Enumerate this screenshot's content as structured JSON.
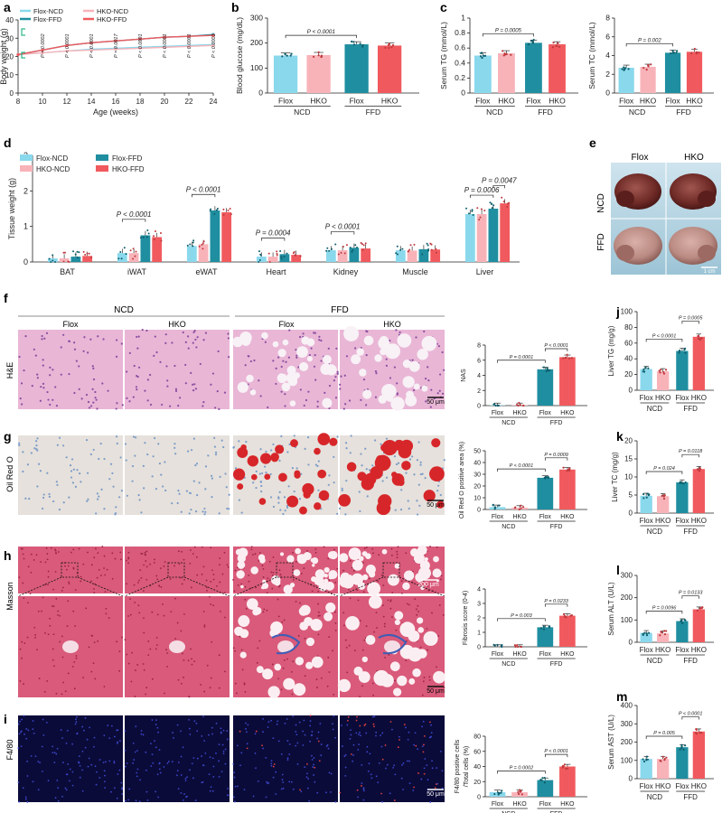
{
  "colors": {
    "flox_ncd": "#8ad8ec",
    "hko_ncd": "#f8b3b9",
    "flox_ffd": "#1f8ea0",
    "hko_ffd": "#f05a5e"
  },
  "panel_letters": [
    "a",
    "b",
    "c",
    "d",
    "e",
    "f",
    "g",
    "h",
    "i",
    "j",
    "k",
    "l",
    "m"
  ],
  "legend_groups": [
    "Flox-NCD",
    "HKO-NCD",
    "Flox-FFD",
    "HKO-FFD"
  ],
  "groups": {
    "flox": "Flox",
    "hko": "HKO",
    "ncd": "NCD",
    "ffd": "FFD"
  },
  "chart_data": [
    {
      "panel": "a",
      "type": "line",
      "xlabel": "Age (weeks)",
      "ylabel": "Body weight (g)",
      "x": [
        8,
        10,
        12,
        14,
        16,
        18,
        20,
        22,
        24
      ],
      "xticks": [
        8,
        10,
        12,
        14,
        16,
        18,
        20,
        22,
        24
      ],
      "ylim": [
        0,
        40
      ],
      "yticks": [
        0,
        10,
        20,
        30,
        40
      ],
      "series": [
        {
          "name": "Flox-NCD",
          "values": [
            21,
            22,
            23,
            24,
            24.5,
            25,
            25.5,
            26,
            26.5
          ]
        },
        {
          "name": "HKO-NCD",
          "values": [
            21,
            22,
            23,
            23.5,
            24,
            24.5,
            25,
            25.5,
            26
          ]
        },
        {
          "name": "Flox-FFD",
          "values": [
            21,
            23.5,
            26,
            27.5,
            28.5,
            29.5,
            30.5,
            31,
            32
          ]
        },
        {
          "name": "HKO-FFD",
          "values": [
            21,
            23.5,
            26,
            27.5,
            28.5,
            29.5,
            30.5,
            31,
            31.5
          ]
        }
      ],
      "pvalues": [
        "P = 0.0002",
        "P < 0.0001",
        "P < 0.0001",
        "P = 0.0017",
        "P < 0.0001",
        "P < 0.0001",
        "P < 0.0001",
        "P < 0.0001"
      ]
    },
    {
      "panel": "b",
      "type": "bar",
      "ylabel": "Blood glucose (mg/dL)",
      "ylim": [
        0,
        300
      ],
      "yticks": [
        0,
        100,
        200,
        300
      ],
      "values": [
        150,
        152,
        195,
        190
      ],
      "comparisons": [
        {
          "from": 0,
          "to": 2,
          "p": "P < 0.0001"
        }
      ]
    },
    {
      "panel": "c1",
      "type": "bar",
      "ylabel": "Serum TG (mmol/L)",
      "ylim": [
        0,
        1.0
      ],
      "yticks": [
        0,
        0.2,
        0.4,
        0.6,
        0.8,
        1.0
      ],
      "values": [
        0.5,
        0.53,
        0.67,
        0.65
      ],
      "comparisons": [
        {
          "from": 0,
          "to": 2,
          "p": "P = 0.0005"
        }
      ]
    },
    {
      "panel": "c2",
      "type": "bar",
      "ylabel": "Serum TC (mmol/L)",
      "ylim": [
        0,
        8
      ],
      "yticks": [
        0,
        2,
        4,
        6,
        8
      ],
      "values": [
        2.7,
        2.8,
        4.3,
        4.4
      ],
      "comparisons": [
        {
          "from": 0,
          "to": 2,
          "p": "P = 0.002"
        }
      ]
    },
    {
      "panel": "d",
      "type": "grouped_bar",
      "ylabel": "Tissue weight (g)",
      "ylim": [
        0,
        3
      ],
      "yticks": [
        0,
        1,
        2,
        3
      ],
      "categories": [
        "BAT",
        "iWAT",
        "eWAT",
        "Heart",
        "Kidney",
        "Muscle",
        "Liver"
      ],
      "series": [
        {
          "name": "Flox-NCD",
          "values": [
            0.1,
            0.25,
            0.45,
            0.15,
            0.33,
            0.33,
            1.35
          ]
        },
        {
          "name": "HKO-NCD",
          "values": [
            0.1,
            0.25,
            0.5,
            0.15,
            0.33,
            0.32,
            1.35
          ]
        },
        {
          "name": "Flox-FFD",
          "values": [
            0.15,
            0.75,
            1.45,
            0.22,
            0.4,
            0.36,
            1.5
          ]
        },
        {
          "name": "HKO-FFD",
          "values": [
            0.17,
            0.7,
            1.4,
            0.2,
            0.38,
            0.35,
            1.65
          ]
        }
      ],
      "comparisons": [
        {
          "category": 1,
          "from": 0,
          "to": 2,
          "p": "P < 0.0001"
        },
        {
          "category": 2,
          "from": 0,
          "to": 2,
          "p": "P < 0.0001"
        },
        {
          "category": 3,
          "from": 0,
          "to": 2,
          "p": "P = 0.0004"
        },
        {
          "category": 4,
          "from": 0,
          "to": 2,
          "p": "P < 0.0001"
        },
        {
          "category": 6,
          "from": 0,
          "to": 2,
          "p": "P = 0.0006"
        },
        {
          "category": 6,
          "from": 2,
          "to": 3,
          "p": "P = 0.0047"
        }
      ]
    },
    {
      "panel": "f",
      "type": "bar",
      "ylabel": "NAS",
      "ylim": [
        0,
        8
      ],
      "yticks": [
        0,
        2,
        4,
        6,
        8
      ],
      "values": [
        0.05,
        0.05,
        4.8,
        6.4
      ],
      "comparisons": [
        {
          "from": 0,
          "to": 2,
          "p": "P = 0.0001"
        },
        {
          "from": 2,
          "to": 3,
          "p": "P < 0.0001"
        }
      ]
    },
    {
      "panel": "g",
      "type": "bar",
      "ylabel": "Oil Red O positive area (%)",
      "ylim": [
        0,
        50
      ],
      "yticks": [
        0,
        10,
        20,
        30,
        40,
        50
      ],
      "values": [
        2,
        1.5,
        27,
        34
      ],
      "comparisons": [
        {
          "from": 0,
          "to": 2,
          "p": "P < 0.0001"
        },
        {
          "from": 2,
          "to": 3,
          "p": "P = 0.0009"
        }
      ]
    },
    {
      "panel": "h",
      "type": "bar",
      "ylabel": "Fibrosis score (0-4)",
      "ylim": [
        0,
        4
      ],
      "yticks": [
        0,
        1,
        2,
        3,
        4
      ],
      "values": [
        0,
        0,
        1.35,
        2.15
      ],
      "comparisons": [
        {
          "from": 0,
          "to": 2,
          "p": "P = 0.003"
        },
        {
          "from": 2,
          "to": 3,
          "p": "P = 0.0233"
        }
      ]
    },
    {
      "panel": "i",
      "type": "bar",
      "ylabel": "F4/80 positive cells /Total cells (%)",
      "ylim": [
        0,
        80
      ],
      "yticks": [
        0,
        20,
        40,
        60,
        80
      ],
      "values": [
        6,
        6,
        22,
        40
      ],
      "comparisons": [
        {
          "from": 0,
          "to": 2,
          "p": "P = 0.0002"
        },
        {
          "from": 2,
          "to": 3,
          "p": "P < 0.0001"
        }
      ]
    },
    {
      "panel": "j",
      "type": "bar",
      "ylabel": "Liver TG (mg/g)",
      "ylim": [
        0,
        100
      ],
      "yticks": [
        0,
        20,
        40,
        60,
        80,
        100
      ],
      "values": [
        27,
        24,
        50,
        68
      ],
      "comparisons": [
        {
          "from": 0,
          "to": 2,
          "p": "P < 0.0001"
        },
        {
          "from": 2,
          "to": 3,
          "p": "P = 0.0005"
        }
      ]
    },
    {
      "panel": "k",
      "type": "bar",
      "ylabel": "Liver TC (mg/g)",
      "ylim": [
        0,
        20
      ],
      "yticks": [
        0,
        5,
        10,
        15,
        20
      ],
      "values": [
        4.8,
        4.7,
        8.5,
        12.2
      ],
      "comparisons": [
        {
          "from": 0,
          "to": 2,
          "p": "P = 0.024"
        },
        {
          "from": 2,
          "to": 3,
          "p": "P = 0.0118"
        }
      ]
    },
    {
      "panel": "l",
      "type": "bar",
      "ylabel": "Serum ALT (U/L)",
      "ylim": [
        0,
        300
      ],
      "yticks": [
        0,
        100,
        200,
        300
      ],
      "values": [
        42,
        40,
        95,
        148
      ],
      "comparisons": [
        {
          "from": 0,
          "to": 2,
          "p": "P = 0.0096"
        },
        {
          "from": 2,
          "to": 3,
          "p": "P = 0.0133"
        }
      ]
    },
    {
      "panel": "m",
      "type": "bar",
      "ylabel": "Serum AST (U/L)",
      "ylim": [
        0,
        400
      ],
      "yticks": [
        0,
        100,
        200,
        300,
        400
      ],
      "values": [
        108,
        108,
        172,
        258
      ],
      "comparisons": [
        {
          "from": 0,
          "to": 2,
          "p": "P = 0.005"
        },
        {
          "from": 2,
          "to": 3,
          "p": "P < 0.0001"
        }
      ]
    }
  ],
  "photo_panel_e": {
    "col_labels": [
      "Flox",
      "HKO"
    ],
    "row_labels": [
      "NCD",
      "FFD"
    ],
    "scale": "1 cm"
  },
  "histology": {
    "diet_headers": [
      "NCD",
      "FFD"
    ],
    "col_labels": [
      "Flox",
      "HKO",
      "Flox",
      "HKO"
    ],
    "row_labels": [
      "H&E",
      "Oil Red O",
      "Masson",
      "F4/80"
    ],
    "scale_50": "50 μm",
    "scale_200": "200 μm"
  }
}
